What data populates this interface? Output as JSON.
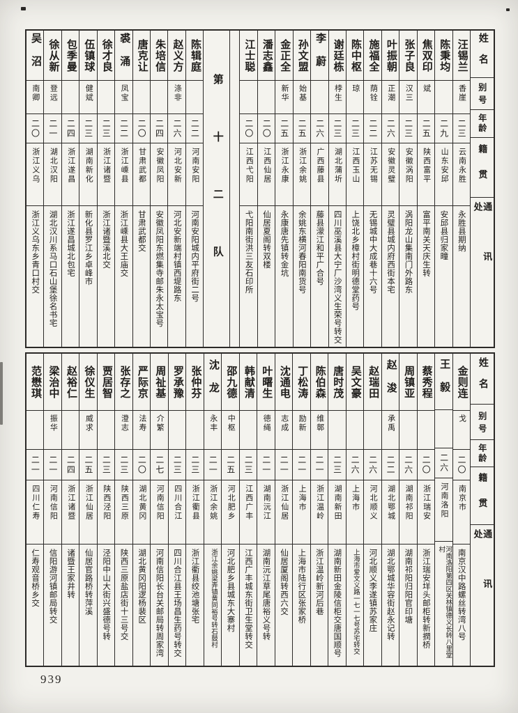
{
  "page": {
    "number": "939"
  },
  "headers": {
    "name": "姓名",
    "byname": "别号",
    "age": "年龄",
    "native": "籍贯",
    "address": "通讯处"
  },
  "divider_label": "第十二队",
  "tables": [
    {
      "id": "top",
      "persons": [
        {
          "name": "汪锡兰",
          "byname": "香崖",
          "age": "二三",
          "native": "云南永胜",
          "address": "永胜县期纳"
        },
        {
          "name": "陈秉均",
          "byname": "",
          "age": "二九",
          "native": "山东安邱",
          "address": "安邱县归家疃"
        },
        {
          "name": "焦双印",
          "byname": "斌",
          "age": "二五",
          "native": "陕西富平",
          "address": "富平南关天庆生转"
        },
        {
          "name": "张子良",
          "byname": "汉三",
          "age": "二三",
          "native": "安徽涡阳",
          "address": "涡阳龙山集南门外路东"
        },
        {
          "name": "叶振朝",
          "byname": "正潮",
          "age": "二六",
          "native": "安徽灵璧",
          "address": "灵璧县城内府西街本宅"
        },
        {
          "name": "施福全",
          "byname": "荫铨",
          "age": "二二",
          "native": "江苏无锡",
          "address": "无锡城中大成巷十六号"
        },
        {
          "name": "陈中枢",
          "byname": "琼",
          "age": "二三",
          "native": "江西玉山",
          "address": "上饶北乡樟村街明德堂药号"
        },
        {
          "name": "谢廷栋",
          "byname": "桲生",
          "age": "二三",
          "native": "湖北蒲圻",
          "address": "四川巫溪县大宁厂沙湾义生荣号转交"
        },
        {
          "name": "李蔚",
          "byname": "",
          "age": "二六",
          "native": "广西藤县",
          "address": "藤县濛江和平广合号"
        },
        {
          "name": "孙文盟",
          "byname": "始基",
          "age": "二五",
          "native": "浙江余姚",
          "address": "余姚东横河春阳南货号"
        },
        {
          "name": "金正全",
          "byname": "新华",
          "age": "二五",
          "native": "浙江永康",
          "address": "永康唐先镇转金坑"
        },
        {
          "name": "潘志鑫",
          "byname": "",
          "age": "二〇",
          "native": "江西仙居",
          "address": "仙居夏阁转双楼"
        },
        {
          "name": "江士聪",
          "byname": "",
          "age": "二〇",
          "native": "江西弋阳",
          "address": "弋阳南街洪三友石印所"
        },
        {
          "type": "spacer"
        },
        {
          "type": "divider"
        },
        {
          "name": "陈辑庭",
          "byname": "",
          "age": "二二",
          "native": "河南安阳",
          "address": "河南安阳城内平府街二号"
        },
        {
          "name": "赵义方",
          "byname": "涤非",
          "age": "二六",
          "native": "河北安新",
          "address": "河北安新端村镇西堤路东"
        },
        {
          "name": "朱培信",
          "byname": "",
          "age": "二四",
          "native": "安徽凤阳",
          "address": "安徽凤阳东燃集寺邮朱永太宝号"
        },
        {
          "name": "唐克让",
          "byname": "",
          "age": "二〇",
          "native": "甘肃武都",
          "address": "甘肃武都交"
        },
        {
          "name": "裘涌",
          "byname": "凤宝",
          "age": "二二",
          "native": "浙江嵊县",
          "address": "浙江嵊县大王庙交"
        },
        {
          "name": "徐才良",
          "byname": "",
          "age": "二三",
          "native": "浙江诸暨",
          "address": "浙江诸暨溪北交"
        },
        {
          "name": "伍镇球",
          "byname": "健斌",
          "age": "二三",
          "native": "湖南新化",
          "address": "新化县罗江乡卓峰市"
        },
        {
          "name": "包季曼",
          "byname": "",
          "age": "二四",
          "native": "浙江遂昌",
          "address": "浙江遂昌城北包宅"
        },
        {
          "name": "徐从新",
          "byname": "登远",
          "age": "二一",
          "native": "湖北汉阳",
          "address": "湖北汉川系马口石山堡徐名书宅"
        },
        {
          "name": "吴沼",
          "byname": "南卿",
          "age": "二〇",
          "native": "浙江义乌",
          "address": "浙江义乌东乡青口村交"
        }
      ]
    },
    {
      "id": "bottom",
      "persons": [
        {
          "name": "金则连",
          "byname": "戈",
          "age": "二〇",
          "native": "南京市",
          "address": "南京汉中路螺丝转湾八号"
        },
        {
          "name": "王毅",
          "byname": "",
          "age": "二六",
          "native": "河南洛阳",
          "address": "河南洛阳第四区关林镇德义长转八里堂村"
        },
        {
          "name": "蔡秀程",
          "byname": "",
          "age": "二〇",
          "native": "浙江瑞安",
          "address": "浙江瑞安垟头邮柜转新撋桥"
        },
        {
          "name": "周镇亚",
          "byname": "",
          "age": "二六",
          "native": "湖南祁阳",
          "address": "湖南祁阳归阳官印塘"
        },
        {
          "name": "赵浚",
          "byname": "承禹",
          "age": "二二",
          "native": "湖北鄂城",
          "address": "湖北鄂城华容街赵永记转"
        },
        {
          "name": "赵瑞田",
          "byname": "",
          "age": "二六",
          "native": "河北顺义",
          "address": "河北顺义李遂镇苏家庄"
        },
        {
          "name": "吴文豪",
          "byname": "",
          "age": "二六",
          "native": "上海市",
          "address": "上海市爱文义路一七一七号苏宅转交"
        },
        {
          "name": "唐时茂",
          "byname": "",
          "age": "二三",
          "native": "湖南新田",
          "address": "湖南新田金陵信柜交唐国顺号"
        },
        {
          "name": "陈伯森",
          "byname": "维鄣",
          "age": "二一",
          "native": "浙江温岭",
          "address": "浙江温岭新河后巷"
        },
        {
          "name": "丁松涛",
          "byname": "励新",
          "age": "二一",
          "native": "上海市",
          "address": "上海市陆行区张家桥"
        },
        {
          "name": "沈通电",
          "byname": "志成",
          "age": "二一",
          "native": "浙江仙居",
          "address": "仙居厦阁转西六交"
        },
        {
          "name": "叶曙生",
          "byname": "德绳",
          "age": "二一",
          "native": "湖南沅江",
          "address": "湖南沅江草尾唐裕义号转"
        },
        {
          "name": "韩献清",
          "byname": "",
          "age": "二三",
          "native": "江西广丰",
          "address": "江西广丰城东街卫生堂转交"
        },
        {
          "name": "邵九德",
          "byname": "中枢",
          "age": "二五",
          "native": "河北肥乡",
          "address": "河北肥乡县城东大寨村"
        },
        {
          "name": "沈龙",
          "byname": "永丰",
          "age": "二一",
          "native": "浙江余姚",
          "address": "浙江余姚梁弄镇黄同裕号转石鼓村"
        },
        {
          "name": "张仲芬",
          "byname": "",
          "age": "二三",
          "native": "浙江衢县",
          "address": "浙江衢县绞池塘张宅"
        },
        {
          "name": "罗承豫",
          "byname": "",
          "age": "二三",
          "native": "四川合江",
          "address": "四川合江县王场昌生药号转交"
        },
        {
          "name": "周祉基",
          "byname": "介繁",
          "age": "二七",
          "native": "河南信阳",
          "address": "河南信阳长台关邮局转周家湾"
        },
        {
          "name": "严际京",
          "byname": "法寿",
          "age": "二〇",
          "native": "湖北黄冈",
          "address": "湖北黄冈阳逻杨裴区"
        },
        {
          "name": "张存之",
          "byname": "澄志",
          "age": "二三",
          "native": "陕西三原",
          "address": "陕西三原盐店街十三号交"
        },
        {
          "name": "贾居智",
          "byname": "",
          "age": "二三",
          "native": "陕西泾阳",
          "address": "泾阳中山大街兴盛德号转"
        },
        {
          "name": "徐仪生",
          "byname": "威求",
          "age": "二五",
          "native": "浙江仙居",
          "address": "仙居官路桥转萍溪"
        },
        {
          "name": "赵裕仁",
          "byname": "",
          "age": "二四",
          "native": "浙江诸暨",
          "address": "诸暨王家井转"
        },
        {
          "name": "梁治中",
          "byname": "振华",
          "age": "二一",
          "native": "河南信阳",
          "address": "信阳游河镇邮局转交"
        },
        {
          "name": "范懋琪",
          "byname": "",
          "age": "二一",
          "native": "四川仁寿",
          "address": "仁寿观音桥乡交"
        }
      ]
    }
  ]
}
